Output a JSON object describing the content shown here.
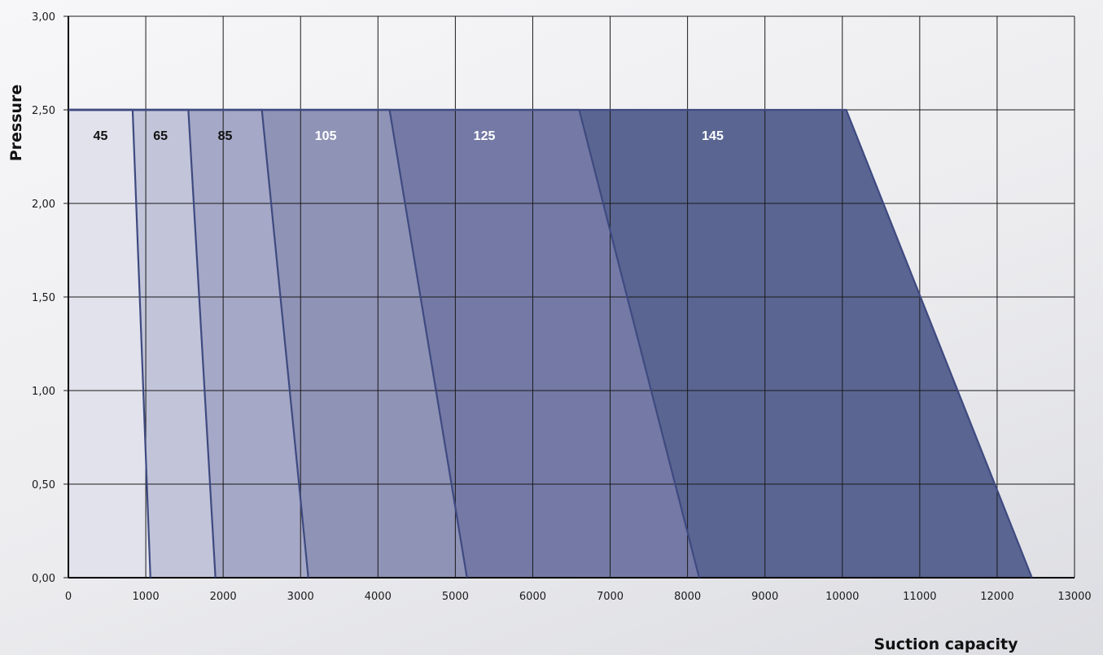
{
  "chart_data": {
    "type": "area",
    "xlabel": "Suction capacity",
    "ylabel": "Pressure",
    "xlim": [
      0,
      13000
    ],
    "ylim": [
      0,
      3.0
    ],
    "x_ticks": [
      "0",
      "1000",
      "2000",
      "3000",
      "4000",
      "5000",
      "6000",
      "7000",
      "8000",
      "9000",
      "10000",
      "11000",
      "12000",
      "13000"
    ],
    "y_ticks": [
      "0,00",
      "0,50",
      "1,00",
      "1,50",
      "2,00",
      "2,50",
      "3,00"
    ],
    "grid": true,
    "series": [
      {
        "name": "145",
        "top_right_x": 10050,
        "bottom_x": 12450,
        "max_pressure": 2.5,
        "color": "#5a6592",
        "label_color": "#ffffff"
      },
      {
        "name": "125",
        "top_right_x": 6600,
        "bottom_x": 8150,
        "max_pressure": 2.5,
        "color": "#747aa5",
        "label_color": "#ffffff"
      },
      {
        "name": "105",
        "top_right_x": 4150,
        "bottom_x": 5150,
        "max_pressure": 2.5,
        "color": "#8f93b6",
        "label_color": "#ffffff"
      },
      {
        "name": "85",
        "top_right_x": 2500,
        "bottom_x": 3100,
        "max_pressure": 2.5,
        "color": "#a5a8c6",
        "label_color": "#111111"
      },
      {
        "name": "65",
        "top_right_x": 1550,
        "bottom_x": 1900,
        "max_pressure": 2.5,
        "color": "#c2c4d9",
        "label_color": "#111111"
      },
      {
        "name": "45",
        "top_right_x": 830,
        "bottom_x": 1060,
        "max_pressure": 2.5,
        "color": "#e1e2ec",
        "label_color": "#111111"
      }
    ],
    "edge_color": "#3e4a80"
  }
}
